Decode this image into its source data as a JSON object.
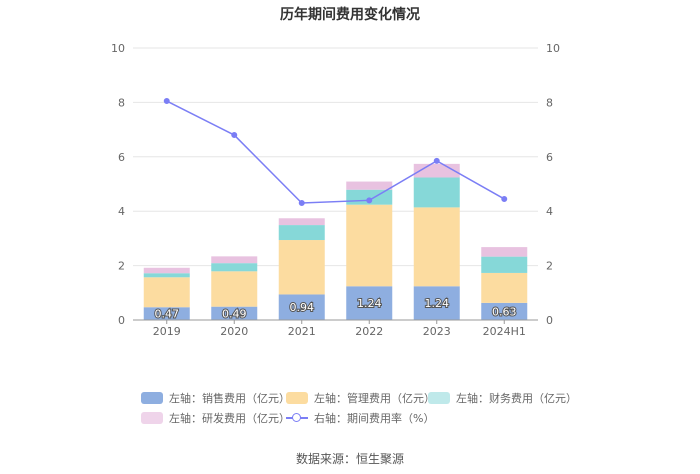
{
  "chart_data": {
    "type": "bar",
    "title": "历年期间费用变化情况",
    "categories": [
      "2019",
      "2020",
      "2021",
      "2022",
      "2023",
      "2024H1"
    ],
    "series": [
      {
        "name": "左轴：销售费用（亿元）",
        "kind": "stacked-bar",
        "color": "#8eaee0",
        "values": [
          0.47,
          0.49,
          0.94,
          1.24,
          1.24,
          0.63
        ],
        "labels": [
          "0.47",
          "0.49",
          "0.94",
          "1.24",
          "1.24",
          "0.63"
        ]
      },
      {
        "name": "左轴：管理费用（亿元）",
        "kind": "stacked-bar",
        "color": "#fcdca0",
        "values": [
          1.1,
          1.3,
          2.0,
          3.0,
          2.9,
          1.1
        ]
      },
      {
        "name": "左轴：财务费用（亿元）",
        "kind": "stacked-bar",
        "color": "#86d8d8",
        "values": [
          0.15,
          0.3,
          0.55,
          0.55,
          1.1,
          0.6
        ]
      },
      {
        "name": "左轴：研发费用（亿元）",
        "kind": "stacked-bar",
        "color": "#e8c2e0",
        "values": [
          0.2,
          0.25,
          0.25,
          0.3,
          0.5,
          0.35
        ]
      },
      {
        "name": "右轴：期间费用率（%）",
        "kind": "line",
        "color": "#7b7ef5",
        "values": [
          8.05,
          6.8,
          4.3,
          4.4,
          5.85,
          4.45
        ]
      }
    ],
    "left_axis": {
      "min": 0,
      "max": 10,
      "ticks": [
        "0",
        "2",
        "4",
        "6",
        "8",
        "10"
      ]
    },
    "right_axis": {
      "min": 0,
      "max": 10,
      "ticks": [
        "0",
        "2",
        "4",
        "6",
        "8",
        "10"
      ]
    },
    "legend_position": "bottom",
    "grid": true
  },
  "source": "数据来源：恒生聚源"
}
